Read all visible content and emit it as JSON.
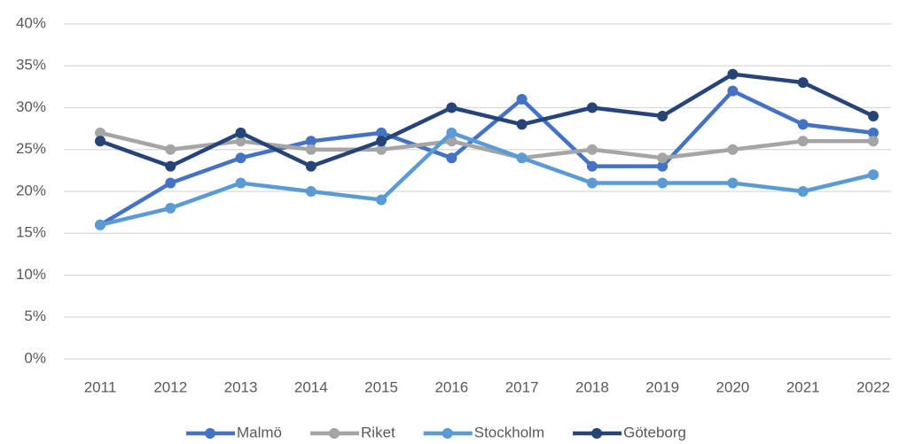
{
  "chart_data": {
    "type": "line",
    "categories": [
      "2011",
      "2012",
      "2013",
      "2014",
      "2015",
      "2016",
      "2017",
      "2018",
      "2019",
      "2020",
      "2021",
      "2022"
    ],
    "series": [
      {
        "name": "Malmö",
        "color": "#4472c4",
        "values": [
          16,
          21,
          24,
          26,
          27,
          24,
          31,
          23,
          23,
          32,
          28,
          27
        ]
      },
      {
        "name": "Riket",
        "color": "#a5a5a5",
        "values": [
          27,
          25,
          26,
          25,
          25,
          26,
          24,
          25,
          24,
          25,
          26,
          26
        ]
      },
      {
        "name": "Stockholm",
        "color": "#5b9bd5",
        "values": [
          16,
          18,
          21,
          20,
          19,
          27,
          24,
          21,
          21,
          21,
          20,
          22
        ]
      },
      {
        "name": "Göteborg",
        "color": "#264478",
        "values": [
          26,
          23,
          27,
          23,
          26,
          30,
          28,
          30,
          29,
          34,
          33,
          29
        ]
      }
    ],
    "ylim": [
      0,
      40
    ],
    "yticks": [
      {
        "value": 0,
        "label": "0%"
      },
      {
        "value": 5,
        "label": "5%"
      },
      {
        "value": 10,
        "label": "10%"
      },
      {
        "value": 15,
        "label": "15%"
      },
      {
        "value": 20,
        "label": "20%"
      },
      {
        "value": 25,
        "label": "25%"
      },
      {
        "value": 30,
        "label": "30%"
      },
      {
        "value": 35,
        "label": "35%"
      },
      {
        "value": 40,
        "label": "40%"
      }
    ],
    "grid": true,
    "legend": "bottom"
  }
}
